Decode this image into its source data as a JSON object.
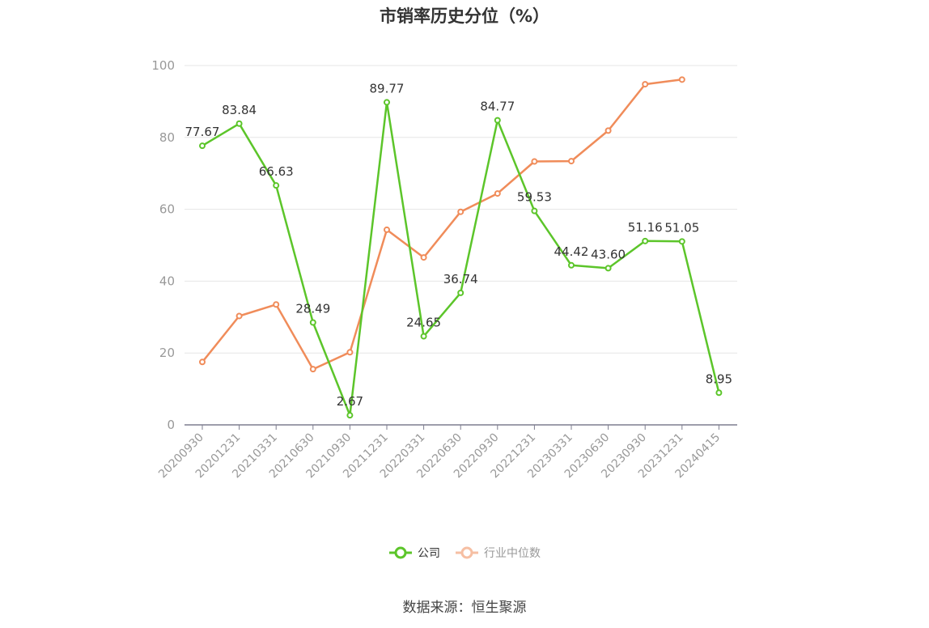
{
  "chart_data": {
    "type": "line",
    "title": "市销率历史分位（%）",
    "categories": [
      "20200930",
      "20201231",
      "20210331",
      "20210630",
      "20210930",
      "20211231",
      "20220331",
      "20220630",
      "20220930",
      "20221231",
      "20230331",
      "20230630",
      "20230930",
      "20231231",
      "20240415"
    ],
    "ylim": [
      0,
      100
    ],
    "yticks": [
      0,
      20,
      40,
      60,
      80,
      100
    ],
    "grid": true,
    "legend_position": "bottom",
    "series": [
      {
        "name": "公司",
        "color": "#5cc52a",
        "values": [
          77.67,
          83.84,
          66.63,
          28.49,
          2.67,
          89.77,
          24.65,
          36.74,
          84.77,
          59.53,
          44.42,
          43.6,
          51.16,
          51.05,
          8.95
        ],
        "labels": [
          "77.67",
          "83.84",
          "66.63",
          "28.49",
          "2.67",
          "89.77",
          "24.65",
          "36.74",
          "84.77",
          "59.53",
          "44.42",
          "43.60",
          "51.16",
          "51.05",
          "8.95"
        ]
      },
      {
        "name": "行业中位数",
        "color": "#f08c5a",
        "values": [
          17.5,
          30.3,
          33.5,
          15.5,
          20.2,
          54.3,
          46.6,
          59.3,
          64.4,
          73.3,
          73.4,
          81.9,
          94.8,
          96.1,
          null
        ]
      }
    ]
  },
  "source_note": "数据来源：恒生聚源"
}
